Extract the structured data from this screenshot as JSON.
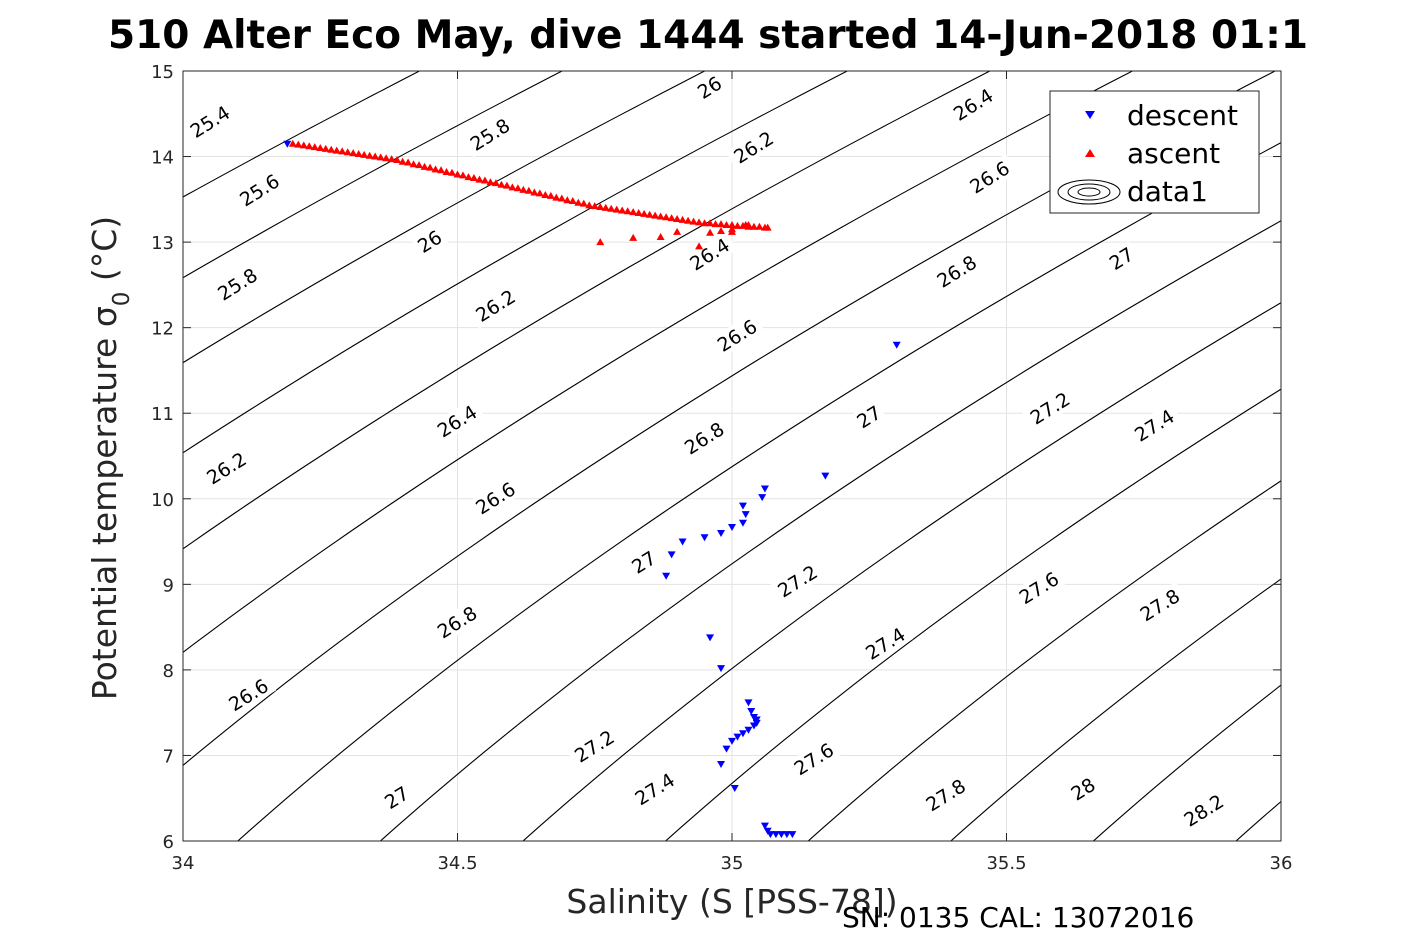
{
  "chart_data": {
    "type": "scatter",
    "title": "510 Alter Eco May, dive 1444 started 14-Jun-2018 01:1",
    "xlabel": "Salinity (S [PSS-78])",
    "ylabel": "Potential temperature σ",
    "ylabel_subscript": "0",
    "ylabel_unit": " (°C)",
    "xlim": [
      34,
      36
    ],
    "ylim": [
      6,
      15
    ],
    "xticks": [
      34,
      34.5,
      35,
      35.5,
      36
    ],
    "xtick_labels": [
      "34",
      "34.5",
      "35",
      "35.5",
      "36"
    ],
    "yticks": [
      6,
      7,
      8,
      9,
      10,
      11,
      12,
      13,
      14,
      15
    ],
    "ytick_labels": [
      "6",
      "7",
      "8",
      "9",
      "10",
      "11",
      "12",
      "13",
      "14",
      "15"
    ],
    "grid": true,
    "legend_position": "top-right",
    "contour_levels": [
      25.4,
      25.6,
      25.8,
      26,
      26.2,
      26.4,
      26.6,
      26.8,
      27,
      27.2,
      27.4,
      27.6,
      27.8,
      28,
      28.2
    ],
    "contour_labels": [
      {
        "text": "25.4",
        "s": 34.05,
        "t": 14.4
      },
      {
        "text": "25.6",
        "s": 34.14,
        "t": 13.6
      },
      {
        "text": "25.8",
        "s": 34.1,
        "t": 12.5
      },
      {
        "text": "26.2",
        "s": 34.08,
        "t": 10.35
      },
      {
        "text": "26.6",
        "s": 34.12,
        "t": 7.7
      },
      {
        "text": "25.8",
        "s": 34.56,
        "t": 14.25
      },
      {
        "text": "26",
        "s": 34.45,
        "t": 13
      },
      {
        "text": "26.2",
        "s": 34.57,
        "t": 12.25
      },
      {
        "text": "26.4",
        "s": 34.5,
        "t": 10.9
      },
      {
        "text": "26.6",
        "s": 34.57,
        "t": 10
      },
      {
        "text": "26.8",
        "s": 34.5,
        "t": 8.55
      },
      {
        "text": "27",
        "s": 34.39,
        "t": 6.5
      },
      {
        "text": "26",
        "s": 34.96,
        "t": 14.8
      },
      {
        "text": "26.2",
        "s": 35.04,
        "t": 14.1
      },
      {
        "text": "26.4",
        "s": 34.96,
        "t": 12.85
      },
      {
        "text": "26.6",
        "s": 35.01,
        "t": 11.9
      },
      {
        "text": "26.8",
        "s": 34.95,
        "t": 10.7
      },
      {
        "text": "27",
        "s": 34.84,
        "t": 9.25
      },
      {
        "text": "27.2",
        "s": 34.75,
        "t": 7.1
      },
      {
        "text": "27.4",
        "s": 34.86,
        "t": 6.6
      },
      {
        "text": "26.4",
        "s": 35.44,
        "t": 14.6
      },
      {
        "text": "26.6",
        "s": 35.47,
        "t": 13.75
      },
      {
        "text": "26.8",
        "s": 35.41,
        "t": 12.65
      },
      {
        "text": "27",
        "s": 35.25,
        "t": 10.95
      },
      {
        "text": "27.2",
        "s": 35.12,
        "t": 9.03
      },
      {
        "text": "27.4",
        "s": 35.28,
        "t": 8.3
      },
      {
        "text": "27.6",
        "s": 35.15,
        "t": 6.95
      },
      {
        "text": "27.8",
        "s": 35.39,
        "t": 6.53
      },
      {
        "text": "27",
        "s": 35.71,
        "t": 12.8
      },
      {
        "text": "27.2",
        "s": 35.58,
        "t": 11.05
      },
      {
        "text": "27.4",
        "s": 35.77,
        "t": 10.85
      },
      {
        "text": "27.6",
        "s": 35.56,
        "t": 8.95
      },
      {
        "text": "27.8",
        "s": 35.78,
        "t": 8.75
      },
      {
        "text": "28",
        "s": 35.64,
        "t": 6.6
      },
      {
        "text": "28.2",
        "s": 35.86,
        "t": 6.35
      }
    ],
    "series": [
      {
        "name": "descent",
        "marker": "triangle-down",
        "color": "#0000ff",
        "points": [
          [
            34.19,
            14.15
          ],
          [
            35.3,
            11.8
          ],
          [
            35.17,
            10.27
          ],
          [
            35.06,
            10.12
          ],
          [
            35.055,
            10.02
          ],
          [
            35.02,
            9.92
          ],
          [
            35.025,
            9.82
          ],
          [
            35.02,
            9.72
          ],
          [
            35.0,
            9.67
          ],
          [
            34.98,
            9.6
          ],
          [
            34.95,
            9.55
          ],
          [
            34.91,
            9.5
          ],
          [
            34.89,
            9.35
          ],
          [
            34.88,
            9.1
          ],
          [
            34.96,
            8.38
          ],
          [
            34.98,
            8.02
          ],
          [
            35.03,
            7.62
          ],
          [
            35.035,
            7.52
          ],
          [
            35.04,
            7.45
          ],
          [
            35.045,
            7.42
          ],
          [
            35.045,
            7.38
          ],
          [
            35.04,
            7.35
          ],
          [
            35.03,
            7.3
          ],
          [
            35.02,
            7.26
          ],
          [
            35.01,
            7.22
          ],
          [
            35.0,
            7.17
          ],
          [
            34.99,
            7.08
          ],
          [
            34.98,
            6.9
          ],
          [
            35.005,
            6.62
          ],
          [
            35.06,
            6.18
          ],
          [
            35.065,
            6.12
          ],
          [
            35.07,
            6.08
          ],
          [
            35.08,
            6.08
          ],
          [
            35.09,
            6.08
          ],
          [
            35.1,
            6.08
          ],
          [
            35.11,
            6.08
          ]
        ]
      },
      {
        "name": "ascent",
        "marker": "triangle-up",
        "color": "#ff0000",
        "points": [
          [
            34.2,
            14.15
          ],
          [
            34.21,
            14.14
          ],
          [
            34.22,
            14.13
          ],
          [
            34.23,
            14.12
          ],
          [
            34.24,
            14.11
          ],
          [
            34.25,
            14.1
          ],
          [
            34.26,
            14.09
          ],
          [
            34.27,
            14.08
          ],
          [
            34.28,
            14.07
          ],
          [
            34.29,
            14.06
          ],
          [
            34.3,
            14.05
          ],
          [
            34.31,
            14.04
          ],
          [
            34.32,
            14.03
          ],
          [
            34.33,
            14.02
          ],
          [
            34.34,
            14.01
          ],
          [
            34.35,
            14.0
          ],
          [
            34.36,
            13.99
          ],
          [
            34.37,
            13.98
          ],
          [
            34.38,
            13.97
          ],
          [
            34.39,
            13.96
          ],
          [
            34.4,
            13.94
          ],
          [
            34.41,
            13.93
          ],
          [
            34.42,
            13.91
          ],
          [
            34.43,
            13.9
          ],
          [
            34.44,
            13.88
          ],
          [
            34.45,
            13.87
          ],
          [
            34.46,
            13.85
          ],
          [
            34.47,
            13.84
          ],
          [
            34.48,
            13.82
          ],
          [
            34.49,
            13.81
          ],
          [
            34.5,
            13.79
          ],
          [
            34.51,
            13.78
          ],
          [
            34.52,
            13.76
          ],
          [
            34.53,
            13.75
          ],
          [
            34.54,
            13.73
          ],
          [
            34.55,
            13.72
          ],
          [
            34.56,
            13.7
          ],
          [
            34.57,
            13.69
          ],
          [
            34.58,
            13.67
          ],
          [
            34.59,
            13.66
          ],
          [
            34.6,
            13.64
          ],
          [
            34.61,
            13.63
          ],
          [
            34.62,
            13.61
          ],
          [
            34.63,
            13.6
          ],
          [
            34.64,
            13.58
          ],
          [
            34.65,
            13.57
          ],
          [
            34.66,
            13.55
          ],
          [
            34.67,
            13.54
          ],
          [
            34.68,
            13.52
          ],
          [
            34.69,
            13.51
          ],
          [
            34.7,
            13.49
          ],
          [
            34.71,
            13.48
          ],
          [
            34.72,
            13.46
          ],
          [
            34.73,
            13.45
          ],
          [
            34.74,
            13.43
          ],
          [
            34.75,
            13.42
          ],
          [
            34.76,
            13.41
          ],
          [
            34.77,
            13.4
          ],
          [
            34.78,
            13.39
          ],
          [
            34.79,
            13.38
          ],
          [
            34.8,
            13.37
          ],
          [
            34.81,
            13.36
          ],
          [
            34.82,
            13.35
          ],
          [
            34.83,
            13.34
          ],
          [
            34.84,
            13.33
          ],
          [
            34.85,
            13.32
          ],
          [
            34.86,
            13.31
          ],
          [
            34.87,
            13.3
          ],
          [
            34.88,
            13.29
          ],
          [
            34.89,
            13.28
          ],
          [
            34.9,
            13.27
          ],
          [
            34.91,
            13.26
          ],
          [
            34.92,
            13.25
          ],
          [
            34.93,
            13.24
          ],
          [
            34.94,
            13.23
          ],
          [
            34.95,
            13.22
          ],
          [
            34.96,
            13.22
          ],
          [
            34.97,
            13.21
          ],
          [
            34.98,
            13.21
          ],
          [
            34.99,
            13.2
          ],
          [
            35.0,
            13.2
          ],
          [
            35.01,
            13.19
          ],
          [
            35.02,
            13.19
          ],
          [
            35.03,
            13.18
          ],
          [
            35.04,
            13.18
          ],
          [
            35.05,
            13.18
          ],
          [
            35.06,
            13.17
          ],
          [
            35.065,
            13.17
          ],
          [
            35.03,
            13.2
          ],
          [
            35.025,
            13.2
          ],
          [
            35.0,
            13.15
          ],
          [
            35.0,
            13.12
          ],
          [
            34.98,
            13.13
          ],
          [
            34.96,
            13.11
          ],
          [
            34.94,
            12.95
          ],
          [
            34.9,
            13.12
          ],
          [
            34.87,
            13.06
          ],
          [
            34.82,
            13.05
          ],
          [
            34.76,
            13.0
          ]
        ]
      }
    ],
    "legend": [
      {
        "label": "descent",
        "marker": "triangle-down",
        "color": "#0000ff"
      },
      {
        "label": "ascent",
        "marker": "triangle-up",
        "color": "#ff0000"
      },
      {
        "label": "data1",
        "marker": "contour"
      }
    ]
  },
  "footer": "SN: 0135  CAL: 13072016"
}
